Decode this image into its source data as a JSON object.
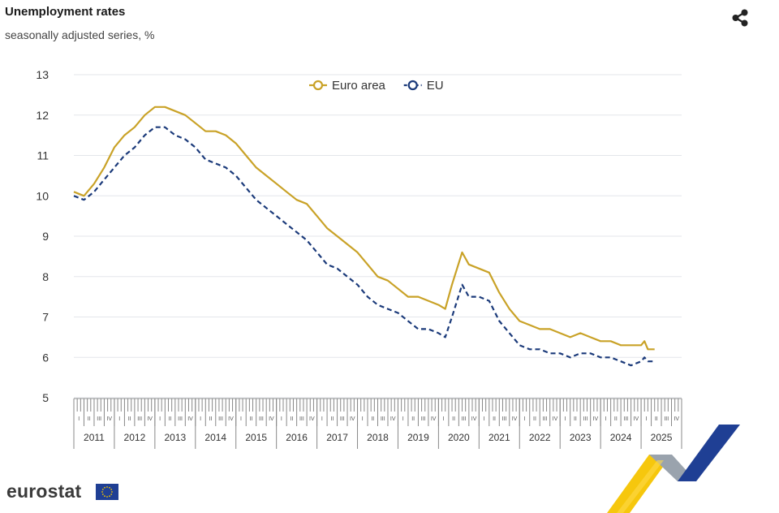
{
  "header": {
    "title": "Unemployment rates",
    "subtitle": "seasonally adjusted series, %",
    "share_icon": "share-icon"
  },
  "footer": {
    "logo_text": "eurostat",
    "flag_icon": "eu-flag-icon",
    "corner_graphic": "eurostat-chevron-graphic"
  },
  "chart_data": {
    "type": "line",
    "ylim": [
      5,
      13
    ],
    "yticks": [
      5,
      6,
      7,
      8,
      9,
      10,
      11,
      12,
      13
    ],
    "grid": true,
    "legend_position": "top-center",
    "years": [
      "2011",
      "2012",
      "2013",
      "2014",
      "2015",
      "2016",
      "2017",
      "2018",
      "2019",
      "2020",
      "2021",
      "2022",
      "2023",
      "2024",
      "2025"
    ],
    "quarter_labels": [
      "I",
      "II",
      "III",
      "IV"
    ],
    "x_start": "2011-01",
    "series": [
      {
        "name": "Euro area",
        "color": "#c9a227",
        "style": "solid",
        "points": [
          [
            "2011-01",
            10.1
          ],
          [
            "2011-04",
            10.0
          ],
          [
            "2011-07",
            10.3
          ],
          [
            "2011-10",
            10.7
          ],
          [
            "2012-01",
            11.2
          ],
          [
            "2012-04",
            11.5
          ],
          [
            "2012-07",
            11.7
          ],
          [
            "2012-10",
            12.0
          ],
          [
            "2013-01",
            12.2
          ],
          [
            "2013-04",
            12.2
          ],
          [
            "2013-07",
            12.1
          ],
          [
            "2013-10",
            12.0
          ],
          [
            "2014-01",
            11.8
          ],
          [
            "2014-04",
            11.6
          ],
          [
            "2014-07",
            11.6
          ],
          [
            "2014-10",
            11.5
          ],
          [
            "2015-01",
            11.3
          ],
          [
            "2015-04",
            11.0
          ],
          [
            "2015-07",
            10.7
          ],
          [
            "2015-10",
            10.5
          ],
          [
            "2016-01",
            10.3
          ],
          [
            "2016-04",
            10.1
          ],
          [
            "2016-07",
            9.9
          ],
          [
            "2016-10",
            9.8
          ],
          [
            "2017-01",
            9.5
          ],
          [
            "2017-04",
            9.2
          ],
          [
            "2017-07",
            9.0
          ],
          [
            "2017-10",
            8.8
          ],
          [
            "2018-01",
            8.6
          ],
          [
            "2018-04",
            8.3
          ],
          [
            "2018-07",
            8.0
          ],
          [
            "2018-10",
            7.9
          ],
          [
            "2019-01",
            7.7
          ],
          [
            "2019-04",
            7.5
          ],
          [
            "2019-07",
            7.5
          ],
          [
            "2019-10",
            7.4
          ],
          [
            "2020-01",
            7.3
          ],
          [
            "2020-03",
            7.2
          ],
          [
            "2020-05",
            7.8
          ],
          [
            "2020-08",
            8.6
          ],
          [
            "2020-10",
            8.3
          ],
          [
            "2021-01",
            8.2
          ],
          [
            "2021-04",
            8.1
          ],
          [
            "2021-07",
            7.6
          ],
          [
            "2021-10",
            7.2
          ],
          [
            "2022-01",
            6.9
          ],
          [
            "2022-04",
            6.8
          ],
          [
            "2022-07",
            6.7
          ],
          [
            "2022-10",
            6.7
          ],
          [
            "2023-01",
            6.6
          ],
          [
            "2023-04",
            6.5
          ],
          [
            "2023-07",
            6.6
          ],
          [
            "2023-10",
            6.5
          ],
          [
            "2024-01",
            6.4
          ],
          [
            "2024-04",
            6.4
          ],
          [
            "2024-07",
            6.3
          ],
          [
            "2024-10",
            6.3
          ],
          [
            "2025-01",
            6.3
          ],
          [
            "2025-02",
            6.4
          ],
          [
            "2025-03",
            6.2
          ],
          [
            "2025-05",
            6.2
          ]
        ]
      },
      {
        "name": "EU",
        "color": "#1b3a7a",
        "style": "dashed",
        "points": [
          [
            "2011-01",
            10.0
          ],
          [
            "2011-04",
            9.9
          ],
          [
            "2011-07",
            10.1
          ],
          [
            "2011-10",
            10.4
          ],
          [
            "2012-01",
            10.7
          ],
          [
            "2012-04",
            11.0
          ],
          [
            "2012-07",
            11.2
          ],
          [
            "2012-10",
            11.5
          ],
          [
            "2013-01",
            11.7
          ],
          [
            "2013-04",
            11.7
          ],
          [
            "2013-07",
            11.5
          ],
          [
            "2013-10",
            11.4
          ],
          [
            "2014-01",
            11.2
          ],
          [
            "2014-04",
            10.9
          ],
          [
            "2014-07",
            10.8
          ],
          [
            "2014-10",
            10.7
          ],
          [
            "2015-01",
            10.5
          ],
          [
            "2015-04",
            10.2
          ],
          [
            "2015-07",
            9.9
          ],
          [
            "2015-10",
            9.7
          ],
          [
            "2016-01",
            9.5
          ],
          [
            "2016-04",
            9.3
          ],
          [
            "2016-07",
            9.1
          ],
          [
            "2016-10",
            8.9
          ],
          [
            "2017-01",
            8.6
          ],
          [
            "2017-04",
            8.3
          ],
          [
            "2017-07",
            8.2
          ],
          [
            "2017-10",
            8.0
          ],
          [
            "2018-01",
            7.8
          ],
          [
            "2018-04",
            7.5
          ],
          [
            "2018-07",
            7.3
          ],
          [
            "2018-10",
            7.2
          ],
          [
            "2019-01",
            7.1
          ],
          [
            "2019-04",
            6.9
          ],
          [
            "2019-07",
            6.7
          ],
          [
            "2019-10",
            6.7
          ],
          [
            "2020-01",
            6.6
          ],
          [
            "2020-03",
            6.5
          ],
          [
            "2020-05",
            7.0
          ],
          [
            "2020-08",
            7.8
          ],
          [
            "2020-10",
            7.5
          ],
          [
            "2021-01",
            7.5
          ],
          [
            "2021-04",
            7.4
          ],
          [
            "2021-07",
            6.9
          ],
          [
            "2021-10",
            6.6
          ],
          [
            "2022-01",
            6.3
          ],
          [
            "2022-04",
            6.2
          ],
          [
            "2022-07",
            6.2
          ],
          [
            "2022-10",
            6.1
          ],
          [
            "2023-01",
            6.1
          ],
          [
            "2023-04",
            6.0
          ],
          [
            "2023-07",
            6.1
          ],
          [
            "2023-10",
            6.1
          ],
          [
            "2024-01",
            6.0
          ],
          [
            "2024-04",
            6.0
          ],
          [
            "2024-07",
            5.9
          ],
          [
            "2024-10",
            5.8
          ],
          [
            "2025-01",
            5.9
          ],
          [
            "2025-02",
            6.0
          ],
          [
            "2025-03",
            5.9
          ],
          [
            "2025-05",
            5.9
          ]
        ]
      }
    ]
  }
}
